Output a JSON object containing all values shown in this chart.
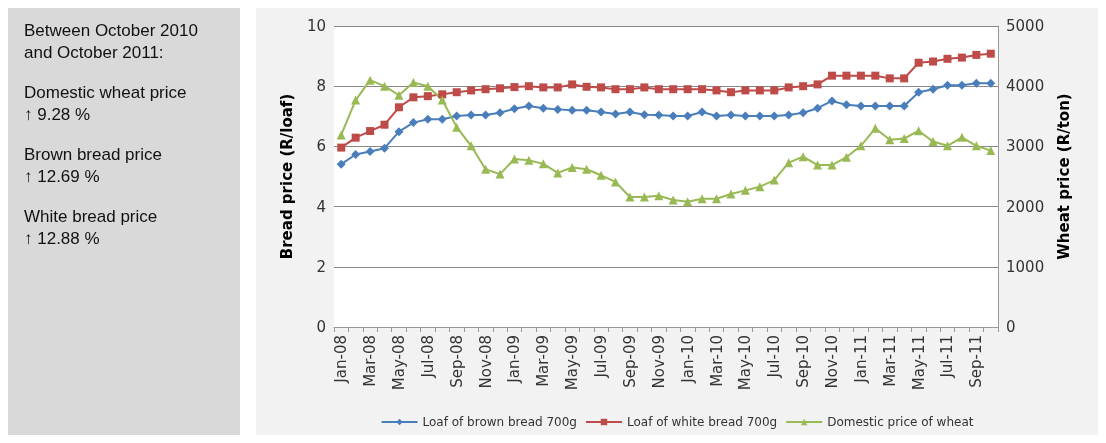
{
  "chart_data": {
    "type": "line",
    "categories": [
      "Jan-08",
      null,
      "Mar-08",
      null,
      "May-08",
      null,
      "Jul-08",
      null,
      "Sep-08",
      null,
      "Nov-08",
      null,
      "Jan-09",
      null,
      "Mar-09",
      null,
      "May-09",
      null,
      "Jul-09",
      null,
      "Sep-09",
      null,
      "Nov-09",
      null,
      "Jan-10",
      null,
      "Mar-10",
      null,
      "May-10",
      null,
      "Jul-10",
      null,
      "Sep-10",
      null,
      "Nov-10",
      null,
      "Jan-11",
      null,
      "Mar-11",
      null,
      "May-11",
      null,
      "Jul-11",
      null,
      "Sep-11",
      null
    ],
    "series": [
      {
        "name": "Loaf of brown bread 700g",
        "color": "#4a7ebb",
        "marker": "diamond",
        "values": [
          5.41,
          5.73,
          5.83,
          5.94,
          6.49,
          6.79,
          6.9,
          6.9,
          7.01,
          7.04,
          7.04,
          7.12,
          7.25,
          7.34,
          7.27,
          7.23,
          7.2,
          7.2,
          7.14,
          7.08,
          7.14,
          7.05,
          7.04,
          7.01,
          7.01,
          7.14,
          7.01,
          7.04,
          7.01,
          7.01,
          7.01,
          7.04,
          7.12,
          7.27,
          7.51,
          7.38,
          7.34,
          7.34,
          7.34,
          7.34,
          7.8,
          7.9,
          8.03,
          8.03,
          8.1,
          8.1
        ]
      },
      {
        "name": "Loaf of white bread 700g",
        "color": "#be4b48",
        "marker": "square",
        "values": [
          5.96,
          6.29,
          6.51,
          6.72,
          7.3,
          7.63,
          7.67,
          7.73,
          7.8,
          7.86,
          7.9,
          7.93,
          7.97,
          8.0,
          7.96,
          7.96,
          8.06,
          7.98,
          7.96,
          7.9,
          7.9,
          7.96,
          7.9,
          7.9,
          7.9,
          7.9,
          7.86,
          7.8,
          7.86,
          7.86,
          7.86,
          7.96,
          8.0,
          8.06,
          8.35,
          8.35,
          8.35,
          8.35,
          8.26,
          8.26,
          8.78,
          8.82,
          8.91,
          8.95,
          9.04,
          9.08
        ]
      },
      {
        "name": "Domestic price of wheat",
        "color": "#98b954",
        "marker": "triangle",
        "axis": "y2",
        "values": [
          3190,
          3770,
          4100,
          4000,
          3850,
          4060,
          4000,
          3770,
          3320,
          3010,
          2620,
          2540,
          2790,
          2770,
          2710,
          2560,
          2650,
          2620,
          2520,
          2410,
          2160,
          2160,
          2180,
          2110,
          2080,
          2130,
          2130,
          2210,
          2270,
          2330,
          2440,
          2730,
          2830,
          2690,
          2690,
          2820,
          3010,
          3300,
          3110,
          3130,
          3260,
          3080,
          3010,
          3150,
          3010,
          2930
        ]
      }
    ],
    "ylabel": "Bread price (R/loaf)",
    "y2label": "Wheat price (R/ton)",
    "ylim": [
      0,
      10
    ],
    "yticks": [
      0,
      2,
      4,
      6,
      8,
      10
    ],
    "y2lim": [
      0,
      5000
    ],
    "y2ticks": [
      0,
      1000,
      2000,
      3000,
      4000,
      5000
    ],
    "grid": "y",
    "legend": "bottom",
    "line_style": "solid",
    "annotations": [
      "Between October 2010\nand October 2011:",
      "Domestic wheat price\n↑ 9.28 %",
      "Brown bread price\n↑ 12.69 %",
      "White bread price\n↑ 12.88 %"
    ]
  }
}
